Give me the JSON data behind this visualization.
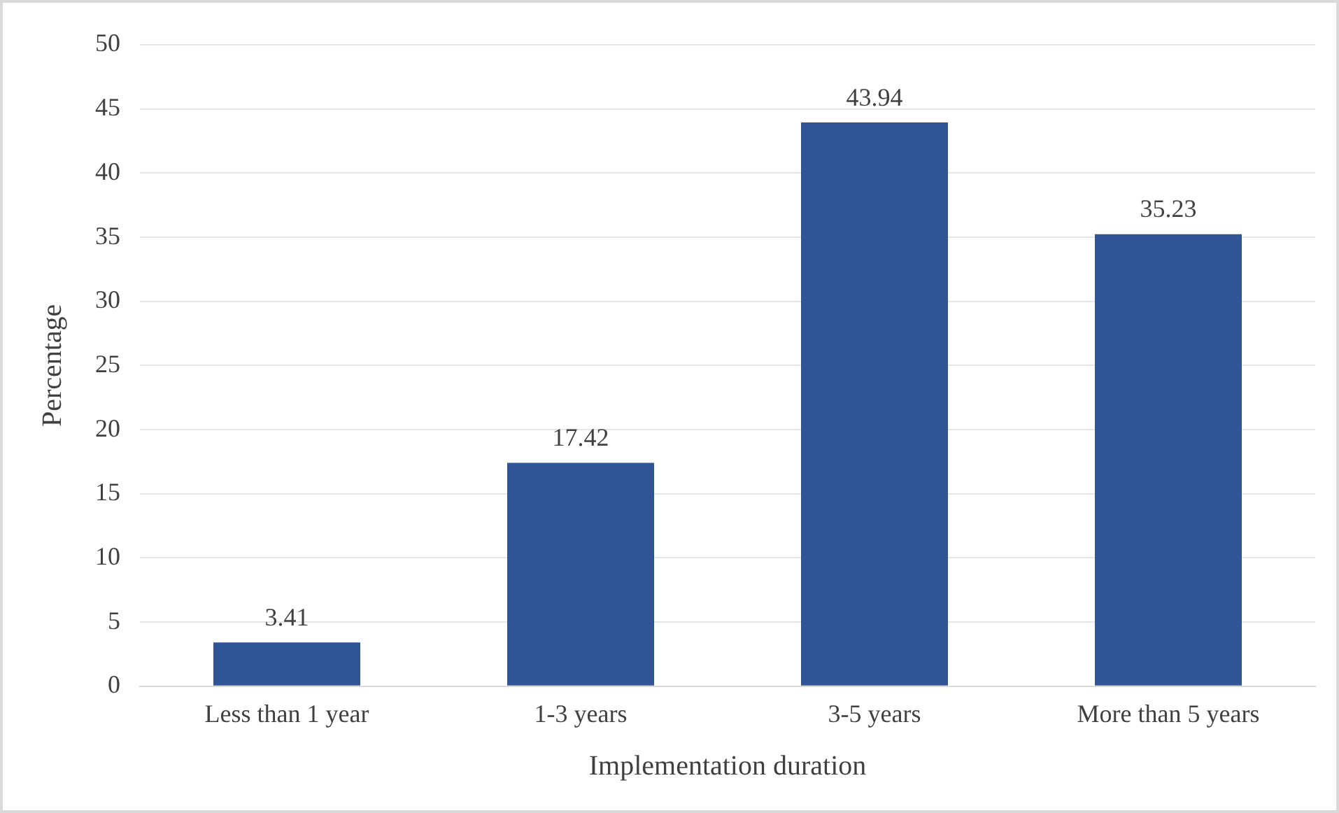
{
  "chart_data": {
    "type": "bar",
    "xlabel": "Implementation duration",
    "ylabel": "Percentage",
    "categories": [
      "Less than 1 year",
      "1-3 years",
      "3-5 years",
      "More than 5 years"
    ],
    "values": [
      3.41,
      17.42,
      43.94,
      35.23
    ],
    "color": "#2f5597",
    "ylim": [
      0,
      50
    ],
    "yticks": [
      0,
      5,
      10,
      15,
      20,
      25,
      30,
      35,
      40,
      45,
      50
    ],
    "grid": "y",
    "data_labels": true,
    "legend": false
  }
}
